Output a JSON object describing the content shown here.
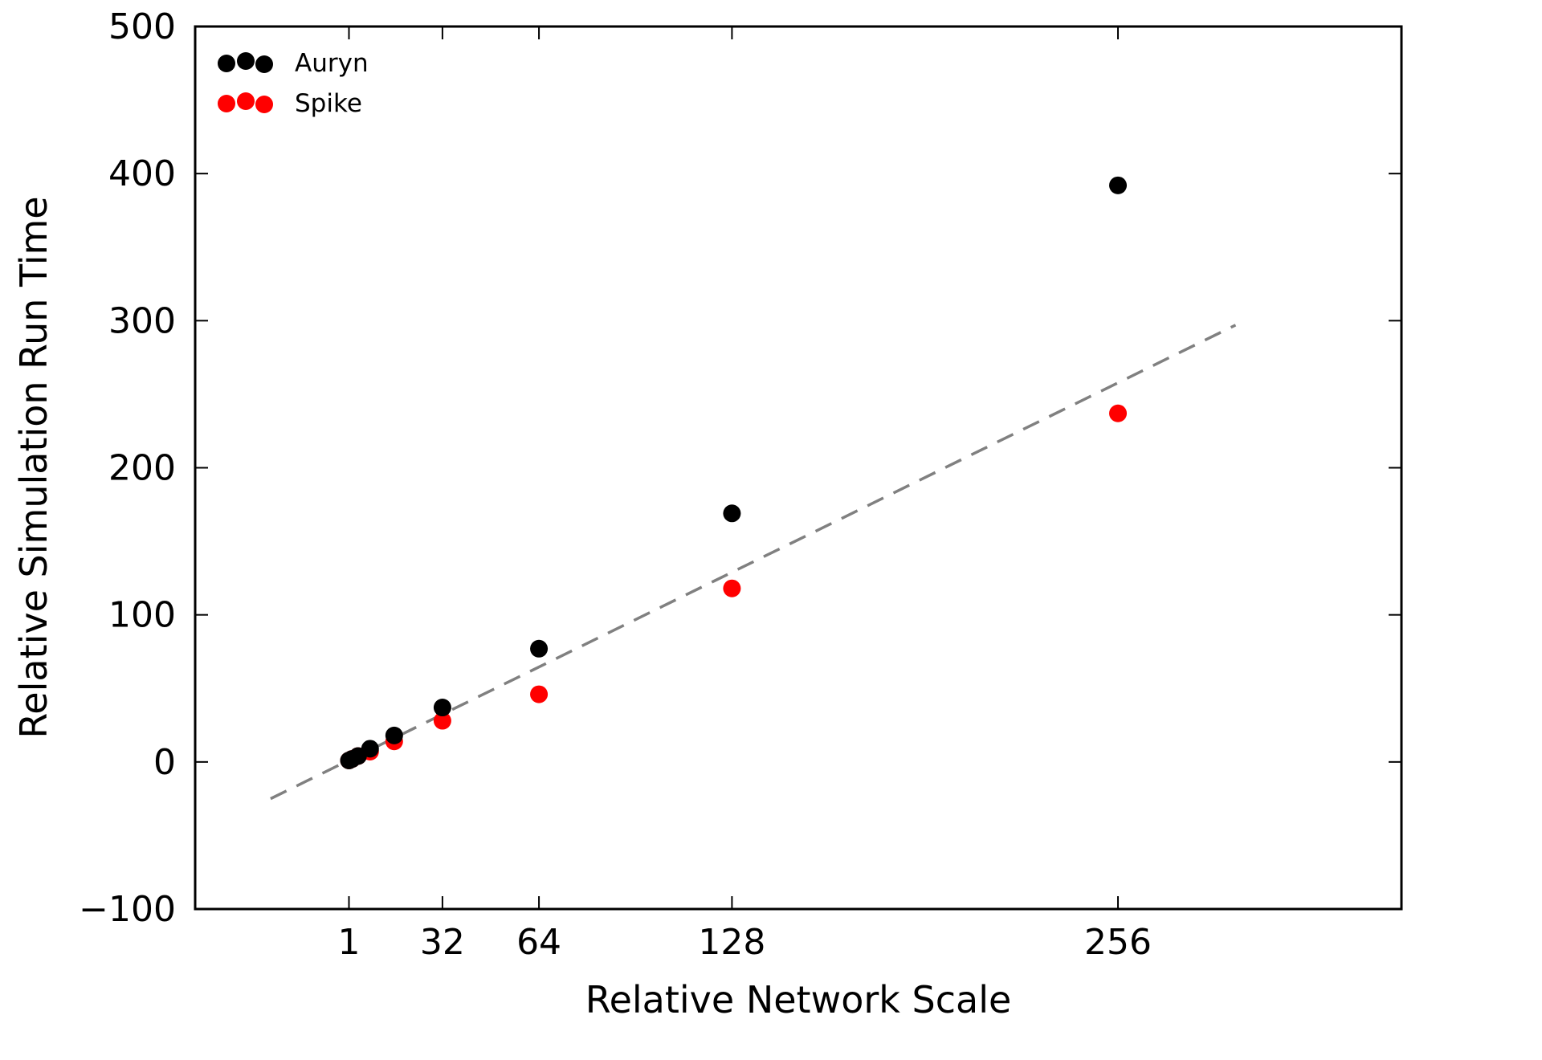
{
  "chart_data": {
    "type": "scatter",
    "xlabel": "Relative Network Scale",
    "ylabel": "Relative Simulation Run Time",
    "xlim": [
      -50,
      350
    ],
    "ylim": [
      -100,
      500
    ],
    "x_ticks": [
      1,
      32,
      64,
      128,
      256
    ],
    "y_ticks": [
      -100,
      0,
      100,
      200,
      300,
      400,
      500
    ],
    "y_tick_labels": [
      "−100",
      "0",
      "100",
      "200",
      "300",
      "400",
      "500"
    ],
    "grid": false,
    "legend_position": "top-left",
    "series": [
      {
        "name": "Auryn",
        "color": "#000000",
        "x": [
          1,
          2,
          4,
          8,
          16,
          32,
          64,
          128,
          256
        ],
        "y": [
          1,
          2,
          4,
          9,
          18,
          37,
          77,
          169,
          392
        ]
      },
      {
        "name": "Spike",
        "color": "#ff0000",
        "x": [
          1,
          2,
          4,
          8,
          16,
          32,
          64,
          128,
          256
        ],
        "y": [
          1,
          2,
          4,
          7,
          14,
          28,
          46,
          118,
          237
        ]
      }
    ],
    "reference_line": {
      "style": "dashed",
      "color": "#808080",
      "x": [
        -25,
        295
      ],
      "y": [
        -25,
        297
      ]
    }
  }
}
